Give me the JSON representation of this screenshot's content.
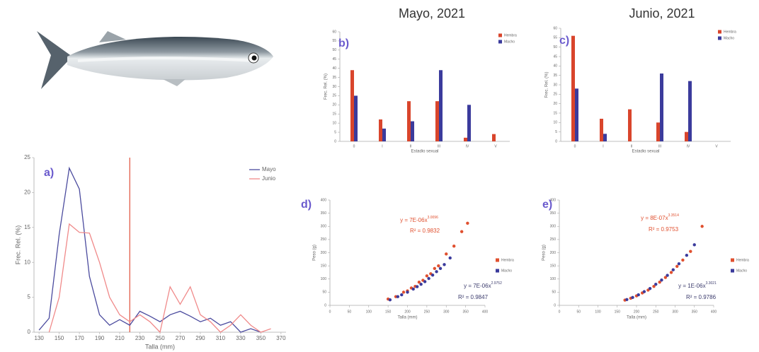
{
  "chart_data": [
    {
      "type": "line",
      "panel_label": "a)",
      "xlabel": "Talla (mm)",
      "ylabel": "Frec. Rel. (%)",
      "x": [
        130,
        140,
        150,
        160,
        170,
        180,
        190,
        200,
        210,
        220,
        230,
        240,
        250,
        260,
        270,
        280,
        290,
        300,
        310,
        320,
        330,
        340,
        350,
        360,
        370
      ],
      "series": [
        {
          "name": "Mayo",
          "color": "#4b4b9e",
          "values": [
            0.3,
            2,
            14,
            23.5,
            20.5,
            8,
            2.5,
            1,
            1.8,
            1,
            3,
            2.3,
            1.5,
            2.5,
            3,
            2.3,
            1.5,
            2,
            1,
            1.5,
            0,
            0.5,
            0,
            null,
            null
          ]
        },
        {
          "name": "Junio",
          "color": "#f08a8a",
          "values": [
            null,
            0,
            5,
            15.5,
            14.3,
            14.2,
            10,
            5,
            2.5,
            1.5,
            2.5,
            1.5,
            0,
            6.5,
            4,
            6.5,
            2.5,
            1.5,
            0,
            1,
            2.5,
            1,
            0,
            0.5,
            null
          ]
        }
      ],
      "xlim": [
        125,
        375
      ],
      "xticks": [
        130,
        150,
        170,
        190,
        210,
        230,
        250,
        270,
        290,
        310,
        330,
        350,
        370
      ],
      "ylim": [
        0,
        25
      ],
      "yticks": [
        0,
        5,
        10,
        15,
        20,
        25
      ],
      "vline": 220,
      "vline_color": "#e0503a"
    },
    {
      "type": "bar",
      "title": "Mayo, 2021",
      "panel_label": "b)",
      "xlabel": "Estadio sexual",
      "ylabel": "Frec. Rel. (%)",
      "categories": [
        "0",
        "I",
        "II",
        "III",
        "IV",
        "V"
      ],
      "series": [
        {
          "name": "Hembra",
          "color": "#d9452c",
          "values": [
            39,
            12,
            22,
            22,
            2,
            4
          ]
        },
        {
          "name": "Macho",
          "color": "#3b3b9c",
          "values": [
            25,
            7,
            11,
            39,
            20,
            0
          ]
        }
      ],
      "ylim": [
        0,
        60
      ],
      "yticks": [
        0,
        5,
        10,
        15,
        20,
        25,
        30,
        35,
        40,
        45,
        50,
        55,
        60
      ]
    },
    {
      "type": "bar",
      "title": "Junio, 2021",
      "panel_label": "c)",
      "xlabel": "Estadio sexual",
      "ylabel": "Frec. Rel. (%)",
      "categories": [
        "0",
        "I",
        "II",
        "III",
        "IV",
        "V"
      ],
      "series": [
        {
          "name": "Hembra",
          "color": "#d9452c",
          "values": [
            56,
            12,
            17,
            10,
            5,
            0
          ]
        },
        {
          "name": "Macho",
          "color": "#3b3b9c",
          "values": [
            28,
            4,
            0,
            36,
            32,
            0
          ]
        }
      ],
      "ylim": [
        0,
        60
      ],
      "yticks": [
        0,
        5,
        10,
        15,
        20,
        25,
        30,
        35,
        40,
        45,
        50,
        55,
        60
      ]
    },
    {
      "type": "scatter",
      "panel_label": "d)",
      "xlabel": "Talla (mm)",
      "ylabel": "Peso (g)",
      "series": [
        {
          "name": "Hembra",
          "color": "#e0502f",
          "x": [
            150,
            170,
            190,
            200,
            210,
            220,
            230,
            240,
            250,
            260,
            270,
            280,
            300,
            320,
            340,
            355
          ],
          "values": [
            24,
            33,
            50,
            55,
            66,
            72,
            88,
            95,
            112,
            120,
            140,
            150,
            195,
            225,
            280,
            312
          ]
        },
        {
          "name": "Macho",
          "color": "#3b3b9c",
          "x": [
            155,
            175,
            185,
            200,
            215,
            225,
            235,
            245,
            255,
            265,
            275,
            285,
            295,
            310
          ],
          "values": [
            21,
            33,
            40,
            50,
            62,
            71,
            80,
            90,
            102,
            115,
            128,
            140,
            155,
            180
          ]
        }
      ],
      "xlim": [
        0,
        400
      ],
      "xticks": [
        0,
        50,
        100,
        150,
        200,
        250,
        300,
        350,
        400
      ],
      "ylim": [
        0,
        400
      ],
      "yticks": [
        0,
        50,
        100,
        150,
        200,
        250,
        300,
        350,
        400
      ],
      "annotations": [
        {
          "text": "y = 7E-06x",
          "sup": "3.0096",
          "color": "#e0502f"
        },
        {
          "text": "R² = 0.9832",
          "color": "#e0502f"
        },
        {
          "text": "y = 7E-06x",
          "sup": "2.9752",
          "color": "#3b3b6c"
        },
        {
          "text": "R² = 0.9847",
          "color": "#3b3b6c"
        }
      ]
    },
    {
      "type": "scatter",
      "panel_label": "e)",
      "xlabel": "Talla (mm)",
      "ylabel": "Peso (g)",
      "series": [
        {
          "name": "Hembra",
          "color": "#e0502f",
          "x": [
            170,
            185,
            200,
            215,
            230,
            245,
            260,
            275,
            290,
            305,
            320,
            340,
            370
          ],
          "values": [
            20,
            27,
            36,
            47,
            58,
            72,
            88,
            106,
            125,
            148,
            172,
            205,
            300
          ]
        },
        {
          "name": "Macho",
          "color": "#3b3b9c",
          "x": [
            175,
            190,
            205,
            220,
            235,
            250,
            265,
            280,
            295,
            310,
            330,
            350
          ],
          "values": [
            22,
            30,
            40,
            52,
            64,
            80,
            96,
            114,
            135,
            158,
            190,
            230
          ]
        }
      ],
      "xlim": [
        0,
        400
      ],
      "xticks": [
        0,
        50,
        100,
        150,
        200,
        250,
        300,
        350,
        400
      ],
      "ylim": [
        0,
        400
      ],
      "yticks": [
        0,
        50,
        100,
        150,
        200,
        250,
        300,
        350,
        400
      ],
      "annotations": [
        {
          "text": "y = 8E-07x",
          "sup": "3.3514",
          "color": "#e0502f"
        },
        {
          "text": "R² = 0.9753",
          "color": "#e0502f"
        },
        {
          "text": "y = 1E-06x",
          "sup": "3.3021",
          "color": "#3b3b6c"
        },
        {
          "text": "R² = 0.9786",
          "color": "#3b3b6c"
        }
      ]
    }
  ]
}
